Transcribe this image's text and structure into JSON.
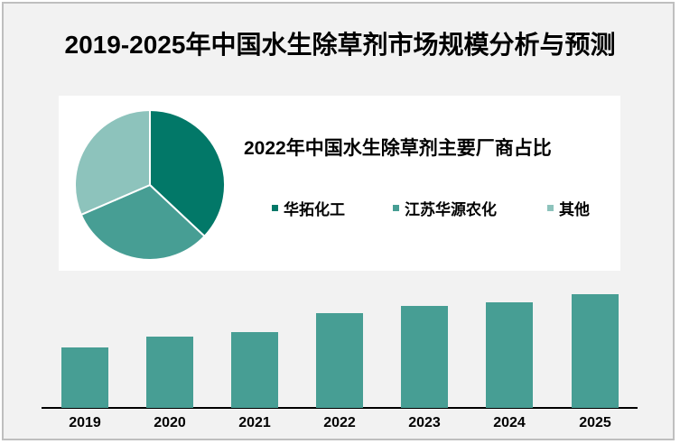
{
  "title": "2019-2025年中国水生除草剂市场规模分析与预测",
  "pie": {
    "subtitle_year": "2022",
    "subtitle_rest": "年中国水生除草剂主要厂商占比",
    "legend": [
      {
        "label": "华拓化工",
        "color": "#027868"
      },
      {
        "label": "江苏华源农化",
        "color": "#479e94"
      },
      {
        "label": "其他",
        "color": "#8dc3bc"
      }
    ]
  },
  "bars": {
    "color": "#479e94",
    "categories": [
      "2019",
      "2020",
      "2021",
      "2022",
      "2023",
      "2024",
      "2025"
    ]
  },
  "chart_data": [
    {
      "type": "pie",
      "title": "2022年中国水生除草剂主要厂商占比",
      "categories": [
        "华拓化工",
        "江苏华源农化",
        "其他"
      ],
      "values": [
        37,
        31.5,
        31.5
      ],
      "colors": [
        "#027868",
        "#479e94",
        "#8dc3bc"
      ],
      "legend_position": "right"
    },
    {
      "type": "bar",
      "title": "2019-2025年中国水生除草剂市场规模分析与预测",
      "categories": [
        "2019",
        "2020",
        "2021",
        "2022",
        "2023",
        "2024",
        "2025"
      ],
      "values": [
        67,
        79,
        84,
        105,
        113,
        117,
        126
      ],
      "xlabel": "",
      "ylabel": "",
      "yaxis_shown": false,
      "grid": false,
      "note": "values are relative bar heights in pixels; no y-axis scale shown"
    }
  ]
}
